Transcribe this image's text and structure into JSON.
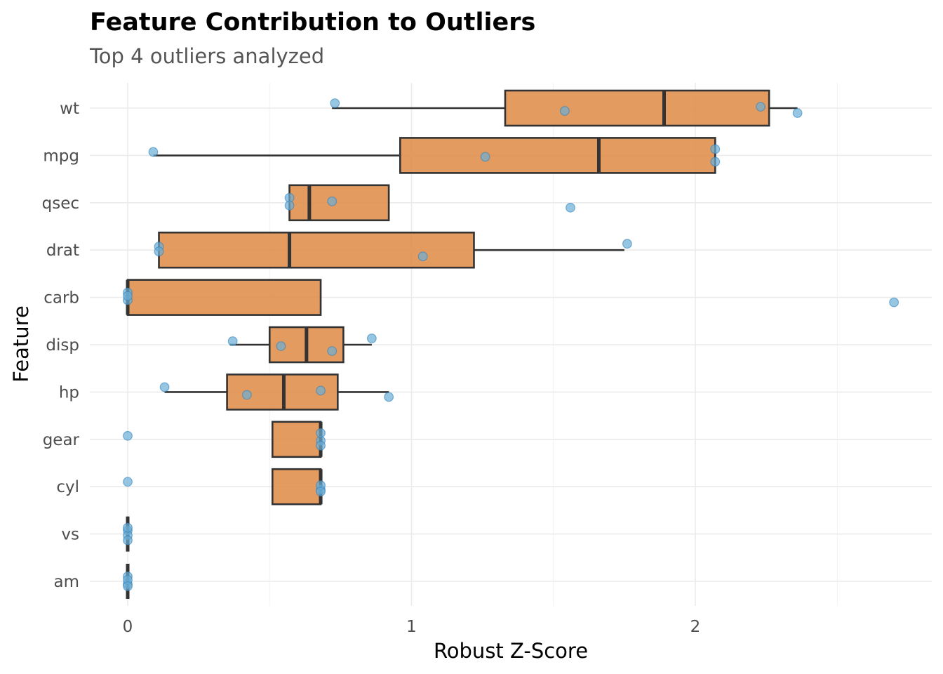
{
  "chart_data": {
    "type": "box",
    "title": "Feature Contribution to Outliers",
    "subtitle": "Top 4 outliers analyzed",
    "xlabel": "Robust Z-Score",
    "ylabel": "Feature",
    "xlim": [
      -0.13,
      2.84
    ],
    "x_ticks": [
      0,
      1,
      2
    ],
    "x_minor_ticks": [
      0.5,
      1.5,
      2.5
    ],
    "grid": true,
    "legend": "none",
    "colors": {
      "box_fill": "#e0904f",
      "box_stroke": "#333333",
      "point": "#6baed6",
      "grid": "#ebebeb"
    },
    "categories": [
      "wt",
      "mpg",
      "qsec",
      "drat",
      "carb",
      "disp",
      "hp",
      "gear",
      "cyl",
      "vs",
      "am"
    ],
    "boxes": [
      {
        "feature": "wt",
        "whisker_low": 0.72,
        "q1": 1.33,
        "median": 1.89,
        "q3": 2.26,
        "whisker_high": 2.36,
        "outliers": []
      },
      {
        "feature": "mpg",
        "whisker_low": 0.09,
        "q1": 0.96,
        "median": 1.66,
        "q3": 2.07,
        "whisker_high": 2.07,
        "outliers": []
      },
      {
        "feature": "qsec",
        "whisker_low": 0.57,
        "q1": 0.57,
        "median": 0.64,
        "q3": 0.92,
        "whisker_high": 0.92,
        "outliers": [
          1.56
        ]
      },
      {
        "feature": "drat",
        "whisker_low": 0.11,
        "q1": 0.11,
        "median": 0.57,
        "q3": 1.22,
        "whisker_high": 1.75,
        "outliers": []
      },
      {
        "feature": "carb",
        "whisker_low": 0.0,
        "q1": 0.0,
        "median": 0.0,
        "q3": 0.68,
        "whisker_high": 0.68,
        "outliers": [
          2.7
        ]
      },
      {
        "feature": "disp",
        "whisker_low": 0.36,
        "q1": 0.5,
        "median": 0.63,
        "q3": 0.76,
        "whisker_high": 0.86,
        "outliers": []
      },
      {
        "feature": "hp",
        "whisker_low": 0.13,
        "q1": 0.35,
        "median": 0.55,
        "q3": 0.74,
        "whisker_high": 0.92,
        "outliers": []
      },
      {
        "feature": "gear",
        "whisker_low": 0.51,
        "q1": 0.51,
        "median": 0.68,
        "q3": 0.68,
        "whisker_high": 0.68,
        "outliers": [
          0.0
        ]
      },
      {
        "feature": "cyl",
        "whisker_low": 0.51,
        "q1": 0.51,
        "median": 0.68,
        "q3": 0.68,
        "whisker_high": 0.68,
        "outliers": [
          0.0
        ]
      },
      {
        "feature": "vs",
        "whisker_low": 0.0,
        "q1": 0.0,
        "median": 0.0,
        "q3": 0.0,
        "whisker_high": 0.0,
        "outliers": []
      },
      {
        "feature": "am",
        "whisker_low": 0.0,
        "q1": 0.0,
        "median": 0.0,
        "q3": 0.0,
        "whisker_high": 0.0,
        "outliers": []
      }
    ],
    "points": [
      {
        "feature": "wt",
        "values": [
          0.73,
          1.54,
          2.23,
          2.36
        ]
      },
      {
        "feature": "mpg",
        "values": [
          0.09,
          1.26,
          2.07,
          2.07
        ]
      },
      {
        "feature": "qsec",
        "values": [
          0.57,
          0.57,
          0.72,
          1.56
        ]
      },
      {
        "feature": "drat",
        "values": [
          0.11,
          0.11,
          1.04,
          1.76
        ]
      },
      {
        "feature": "carb",
        "values": [
          0.0,
          0.0,
          0.0,
          2.7
        ]
      },
      {
        "feature": "disp",
        "values": [
          0.37,
          0.54,
          0.72,
          0.86
        ]
      },
      {
        "feature": "hp",
        "values": [
          0.13,
          0.42,
          0.68,
          0.92
        ]
      },
      {
        "feature": "gear",
        "values": [
          0.0,
          0.68,
          0.68,
          0.68
        ]
      },
      {
        "feature": "cyl",
        "values": [
          0.0,
          0.68,
          0.68,
          0.68
        ]
      },
      {
        "feature": "vs",
        "values": [
          0.0,
          0.0,
          0.0,
          0.0
        ]
      },
      {
        "feature": "am",
        "values": [
          0.0,
          0.0,
          0.0,
          0.0
        ]
      }
    ]
  }
}
